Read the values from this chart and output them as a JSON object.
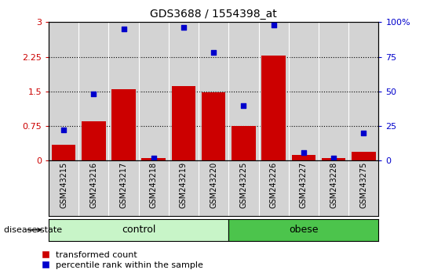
{
  "title": "GDS3688 / 1554398_at",
  "samples": [
    "GSM243215",
    "GSM243216",
    "GSM243217",
    "GSM243218",
    "GSM243219",
    "GSM243220",
    "GSM243225",
    "GSM243226",
    "GSM243227",
    "GSM243228",
    "GSM243275"
  ],
  "red_values": [
    0.35,
    0.85,
    1.55,
    0.05,
    1.62,
    1.48,
    0.75,
    2.27,
    0.12,
    0.05,
    0.2
  ],
  "blue_pct": [
    22,
    48,
    95,
    2,
    96,
    78,
    40,
    98,
    6,
    2,
    20
  ],
  "control_count": 6,
  "ylim_left": [
    0,
    3
  ],
  "ylim_right": [
    0,
    100
  ],
  "yticks_left": [
    0,
    0.75,
    1.5,
    2.25,
    3
  ],
  "yticks_right": [
    0,
    25,
    50,
    75,
    100
  ],
  "ytick_labels_left": [
    "0",
    "0.75",
    "1.5",
    "2.25",
    "3"
  ],
  "ytick_labels_right": [
    "0",
    "25",
    "50",
    "75",
    "100%"
  ],
  "bar_color": "#CC0000",
  "dot_color": "#0000CC",
  "bg_color": "#D3D3D3",
  "control_color": "#C8F5C8",
  "obese_color": "#4CC44C",
  "disease_state_label": "disease state",
  "legend_red": "transformed count",
  "legend_blue": "percentile rank within the sample",
  "grid_dotted_at": [
    0.75,
    1.5,
    2.25
  ]
}
